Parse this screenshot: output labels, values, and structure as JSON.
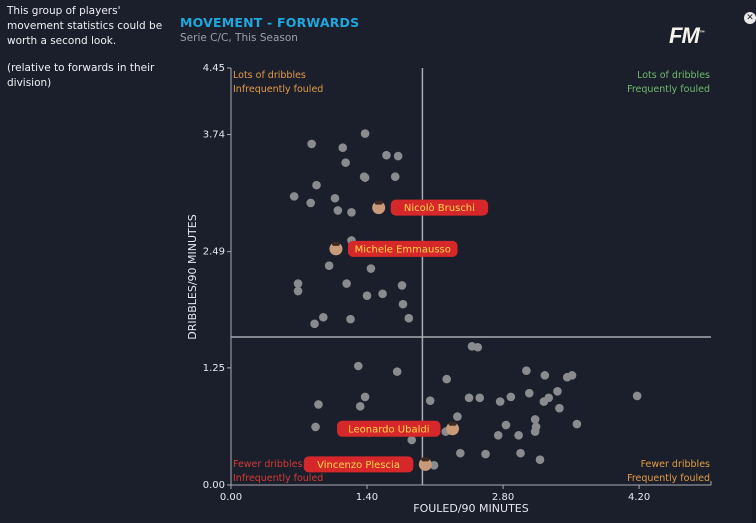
{
  "sidebar": {
    "description": "This group of players' movement statistics could be worth a second look.",
    "note": "(relative to forwards in their division)"
  },
  "header": {
    "title": "MOVEMENT - FORWARDS",
    "subtitle": "Serie C/C, This Season",
    "logo": "FM",
    "close_icon": "close-icon"
  },
  "colors": {
    "background": "#1b1f2c",
    "title": "#1fa8de",
    "dot": "#8a8b8f",
    "axis": "#a8abb2",
    "label_bg": "#d6282a",
    "label_text": "#ffd84a",
    "quad_orange": "#e39b44",
    "quad_green": "#6fb96a",
    "quad_red": "#d43a34"
  },
  "chart_data": {
    "type": "scatter",
    "title": "MOVEMENT - FORWARDS",
    "subtitle": "Serie C/C, This Season",
    "xlabel": "FOULED/90 MINUTES",
    "ylabel": "DRIBBLES/90 MINUTES",
    "xlim": [
      0,
      4.94
    ],
    "ylim": [
      0,
      4.45
    ],
    "x_ticks": [
      {
        "value": 0,
        "label": "0.00"
      },
      {
        "value": 1.4,
        "label": "1.40"
      },
      {
        "value": 2.8,
        "label": "2.80"
      },
      {
        "value": 4.2,
        "label": "4.20"
      }
    ],
    "y_ticks": [
      {
        "value": 0,
        "label": "0.00"
      },
      {
        "value": 1.25,
        "label": "1.25"
      },
      {
        "value": 2.49,
        "label": "2.49"
      },
      {
        "value": 3.74,
        "label": "3.74"
      },
      {
        "value": 4.45,
        "label": "4.45"
      }
    ],
    "divider_x": 1.97,
    "divider_y": 1.58,
    "quadrant_labels": [
      {
        "position": "top-left",
        "lines": [
          "Lots of dribbles",
          "Infrequently fouled"
        ],
        "color": "#e39b44"
      },
      {
        "position": "top-right",
        "lines": [
          "Lots of dribbles",
          "Frequently fouled"
        ],
        "color": "#6fb96a"
      },
      {
        "position": "bottom-left",
        "lines": [
          "Fewer dribbles",
          "Infrequently fouled"
        ],
        "color": "#d43a34"
      },
      {
        "position": "bottom-right",
        "lines": [
          "Fewer dribbles",
          "Frequently fouled"
        ],
        "color": "#e39b44"
      }
    ],
    "highlighted": [
      {
        "name": "Nicolò Bruschi",
        "x": 1.52,
        "y": 2.96,
        "label_side": "right"
      },
      {
        "name": "Michele Emmausso",
        "x": 1.08,
        "y": 2.52,
        "label_side": "right"
      },
      {
        "name": "Leonardo Ubaldi",
        "x": 2.28,
        "y": 0.6,
        "label_side": "left"
      },
      {
        "name": "Vincenzo Plescia",
        "x": 2.0,
        "y": 0.22,
        "label_side": "left"
      }
    ],
    "points": [
      [
        1.38,
        3.75
      ],
      [
        0.83,
        3.64
      ],
      [
        1.15,
        3.6
      ],
      [
        1.6,
        3.52
      ],
      [
        1.72,
        3.51
      ],
      [
        1.18,
        3.44
      ],
      [
        1.37,
        3.29
      ],
      [
        1.38,
        3.28
      ],
      [
        1.69,
        3.29
      ],
      [
        0.88,
        3.2
      ],
      [
        0.65,
        3.08
      ],
      [
        0.82,
        3.01
      ],
      [
        1.07,
        3.06
      ],
      [
        1.1,
        2.93
      ],
      [
        1.24,
        2.91
      ],
      [
        1.24,
        2.61
      ],
      [
        1.01,
        2.34
      ],
      [
        1.44,
        2.31
      ],
      [
        0.69,
        2.15
      ],
      [
        0.69,
        2.07
      ],
      [
        1.19,
        2.15
      ],
      [
        1.4,
        2.02
      ],
      [
        1.56,
        2.04
      ],
      [
        1.76,
        2.13
      ],
      [
        1.77,
        1.93
      ],
      [
        1.83,
        1.78
      ],
      [
        0.95,
        1.79
      ],
      [
        1.23,
        1.77
      ],
      [
        0.86,
        1.72
      ],
      [
        2.48,
        1.48
      ],
      [
        2.54,
        1.47
      ],
      [
        1.31,
        1.27
      ],
      [
        1.71,
        1.21
      ],
      [
        2.22,
        1.13
      ],
      [
        3.04,
        1.22
      ],
      [
        3.23,
        1.17
      ],
      [
        3.51,
        1.17
      ],
      [
        3.46,
        1.15
      ],
      [
        0.9,
        0.86
      ],
      [
        1.38,
        0.94
      ],
      [
        1.33,
        0.84
      ],
      [
        2.05,
        0.9
      ],
      [
        2.45,
        0.93
      ],
      [
        2.56,
        0.93
      ],
      [
        2.77,
        0.89
      ],
      [
        2.88,
        0.94
      ],
      [
        3.07,
        0.98
      ],
      [
        3.22,
        0.89
      ],
      [
        3.27,
        0.93
      ],
      [
        3.36,
        1.0
      ],
      [
        3.38,
        0.82
      ],
      [
        2.33,
        0.73
      ],
      [
        3.56,
        0.65
      ],
      [
        4.18,
        0.95
      ],
      [
        2.83,
        0.64
      ],
      [
        3.13,
        0.7
      ],
      [
        3.14,
        0.62
      ],
      [
        3.13,
        0.57
      ],
      [
        2.96,
        0.53
      ],
      [
        2.75,
        0.53
      ],
      [
        0.87,
        0.62
      ],
      [
        1.42,
        0.56
      ],
      [
        1.86,
        0.48
      ],
      [
        2.21,
        0.57
      ],
      [
        2.36,
        0.34
      ],
      [
        2.62,
        0.33
      ],
      [
        2.98,
        0.34
      ],
      [
        3.18,
        0.27
      ],
      [
        2.09,
        0.21
      ]
    ]
  }
}
